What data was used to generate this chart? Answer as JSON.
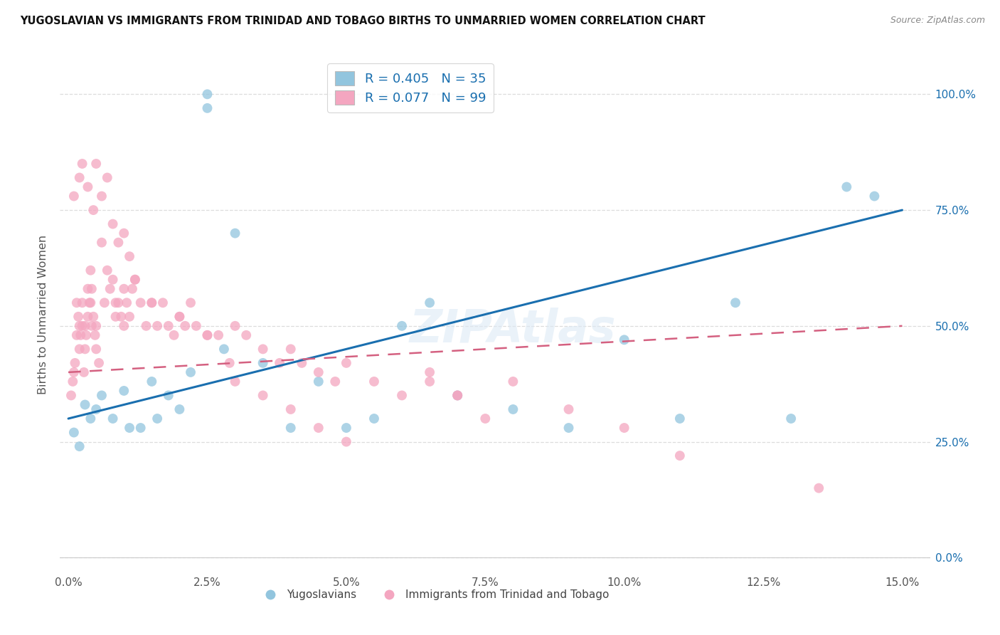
{
  "title": "YUGOSLAVIAN VS IMMIGRANTS FROM TRINIDAD AND TOBAGO BIRTHS TO UNMARRIED WOMEN CORRELATION CHART",
  "source": "Source: ZipAtlas.com",
  "ylabel": "Births to Unmarried Women",
  "xlim": [
    -0.15,
    15.5
  ],
  "ylim": [
    -3,
    108
  ],
  "xtick_vals": [
    0.0,
    2.5,
    5.0,
    7.5,
    10.0,
    12.5,
    15.0
  ],
  "ytick_vals": [
    0.0,
    25.0,
    50.0,
    75.0,
    100.0
  ],
  "blue_scatter_color": "#92c5de",
  "pink_scatter_color": "#f4a6c0",
  "blue_line_color": "#1a6faf",
  "pink_line_color": "#d46080",
  "legend_text_color": "#1a6faf",
  "right_axis_color": "#1a6faf",
  "R_blue": 0.405,
  "N_blue": 35,
  "R_pink": 0.077,
  "N_pink": 99,
  "legend_label_blue": "Yugoslavians",
  "legend_label_pink": "Immigrants from Trinidad and Tobago",
  "watermark": "ZIPAtlas",
  "blue_line_x0": 0.0,
  "blue_line_y0": 30.0,
  "blue_line_x1": 15.0,
  "blue_line_y1": 75.0,
  "pink_line_x0": 0.0,
  "pink_line_y0": 40.0,
  "pink_line_x1": 15.0,
  "pink_line_y1": 50.0,
  "blue_x": [
    0.1,
    0.2,
    0.3,
    0.4,
    0.5,
    0.6,
    0.8,
    1.0,
    1.1,
    1.3,
    1.5,
    1.6,
    1.8,
    2.0,
    2.2,
    2.5,
    2.5,
    2.8,
    3.0,
    3.5,
    4.0,
    4.5,
    5.0,
    5.5,
    6.0,
    6.5,
    7.0,
    8.0,
    9.0,
    10.0,
    11.0,
    12.0,
    13.0,
    14.0,
    14.5
  ],
  "blue_y": [
    27,
    24,
    33,
    30,
    32,
    35,
    30,
    36,
    28,
    28,
    38,
    30,
    35,
    32,
    40,
    100,
    97,
    45,
    70,
    42,
    28,
    38,
    28,
    30,
    50,
    55,
    35,
    32,
    28,
    47,
    30,
    55,
    30,
    80,
    78
  ],
  "pink_x": [
    0.05,
    0.08,
    0.1,
    0.12,
    0.15,
    0.15,
    0.18,
    0.2,
    0.2,
    0.22,
    0.25,
    0.25,
    0.28,
    0.3,
    0.3,
    0.32,
    0.35,
    0.35,
    0.38,
    0.4,
    0.4,
    0.42,
    0.42,
    0.45,
    0.48,
    0.5,
    0.5,
    0.55,
    0.6,
    0.65,
    0.7,
    0.75,
    0.8,
    0.85,
    0.85,
    0.9,
    0.95,
    1.0,
    1.0,
    1.05,
    1.1,
    1.15,
    1.2,
    1.3,
    1.4,
    1.5,
    1.6,
    1.7,
    1.8,
    1.9,
    2.0,
    2.1,
    2.2,
    2.3,
    2.5,
    2.7,
    2.9,
    3.0,
    3.2,
    3.5,
    3.8,
    4.0,
    4.2,
    4.5,
    4.8,
    5.0,
    5.5,
    6.0,
    6.5,
    7.0,
    7.5,
    8.0,
    9.0,
    10.0,
    11.0,
    0.1,
    0.2,
    0.25,
    0.35,
    0.45,
    0.5,
    0.6,
    0.7,
    0.8,
    0.9,
    1.0,
    1.1,
    1.2,
    1.5,
    2.0,
    2.5,
    3.0,
    3.5,
    4.0,
    4.5,
    5.0,
    6.5,
    7.0,
    13.5
  ],
  "pink_y": [
    35,
    38,
    40,
    42,
    55,
    48,
    52,
    45,
    50,
    48,
    50,
    55,
    40,
    45,
    50,
    48,
    52,
    58,
    55,
    62,
    55,
    58,
    50,
    52,
    48,
    45,
    50,
    42,
    68,
    55,
    62,
    58,
    60,
    55,
    52,
    55,
    52,
    58,
    50,
    55,
    52,
    58,
    60,
    55,
    50,
    55,
    50,
    55,
    50,
    48,
    52,
    50,
    55,
    50,
    48,
    48,
    42,
    50,
    48,
    45,
    42,
    45,
    42,
    40,
    38,
    42,
    38,
    35,
    38,
    35,
    30,
    38,
    32,
    28,
    22,
    78,
    82,
    85,
    80,
    75,
    85,
    78,
    82,
    72,
    68,
    70,
    65,
    60,
    55,
    52,
    48,
    38,
    35,
    32,
    28,
    25,
    40,
    35,
    15
  ]
}
